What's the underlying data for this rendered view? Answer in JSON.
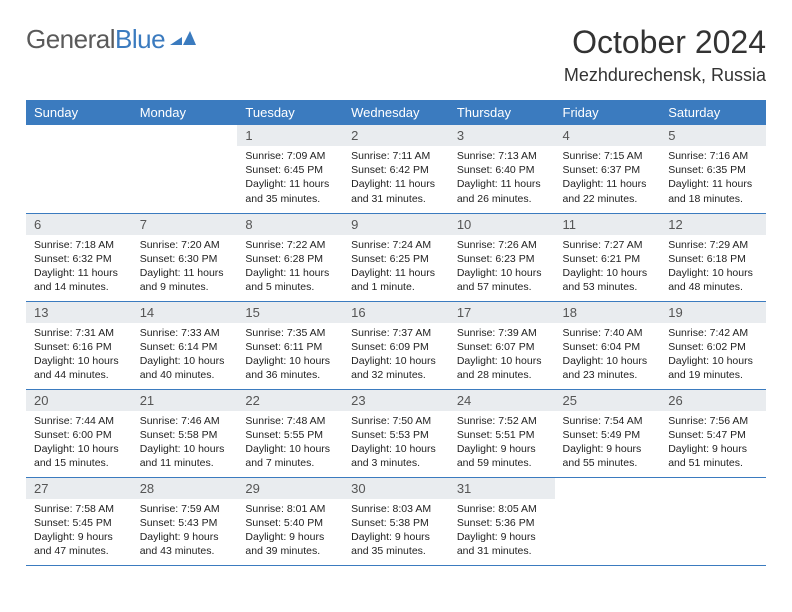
{
  "brand": {
    "text1": "General",
    "text2": "Blue"
  },
  "header": {
    "title": "October 2024",
    "location": "Mezhdurechensk, Russia"
  },
  "colors": {
    "accent": "#3b7bbf",
    "daynum_bg": "#e9ecef",
    "text": "#222222",
    "brand_gray": "#5a5a5a"
  },
  "weekdays": [
    "Sunday",
    "Monday",
    "Tuesday",
    "Wednesday",
    "Thursday",
    "Friday",
    "Saturday"
  ],
  "weeks": [
    [
      null,
      null,
      {
        "n": "1",
        "sr": "Sunrise: 7:09 AM",
        "ss": "Sunset: 6:45 PM",
        "dl": "Daylight: 11 hours and 35 minutes."
      },
      {
        "n": "2",
        "sr": "Sunrise: 7:11 AM",
        "ss": "Sunset: 6:42 PM",
        "dl": "Daylight: 11 hours and 31 minutes."
      },
      {
        "n": "3",
        "sr": "Sunrise: 7:13 AM",
        "ss": "Sunset: 6:40 PM",
        "dl": "Daylight: 11 hours and 26 minutes."
      },
      {
        "n": "4",
        "sr": "Sunrise: 7:15 AM",
        "ss": "Sunset: 6:37 PM",
        "dl": "Daylight: 11 hours and 22 minutes."
      },
      {
        "n": "5",
        "sr": "Sunrise: 7:16 AM",
        "ss": "Sunset: 6:35 PM",
        "dl": "Daylight: 11 hours and 18 minutes."
      }
    ],
    [
      {
        "n": "6",
        "sr": "Sunrise: 7:18 AM",
        "ss": "Sunset: 6:32 PM",
        "dl": "Daylight: 11 hours and 14 minutes."
      },
      {
        "n": "7",
        "sr": "Sunrise: 7:20 AM",
        "ss": "Sunset: 6:30 PM",
        "dl": "Daylight: 11 hours and 9 minutes."
      },
      {
        "n": "8",
        "sr": "Sunrise: 7:22 AM",
        "ss": "Sunset: 6:28 PM",
        "dl": "Daylight: 11 hours and 5 minutes."
      },
      {
        "n": "9",
        "sr": "Sunrise: 7:24 AM",
        "ss": "Sunset: 6:25 PM",
        "dl": "Daylight: 11 hours and 1 minute."
      },
      {
        "n": "10",
        "sr": "Sunrise: 7:26 AM",
        "ss": "Sunset: 6:23 PM",
        "dl": "Daylight: 10 hours and 57 minutes."
      },
      {
        "n": "11",
        "sr": "Sunrise: 7:27 AM",
        "ss": "Sunset: 6:21 PM",
        "dl": "Daylight: 10 hours and 53 minutes."
      },
      {
        "n": "12",
        "sr": "Sunrise: 7:29 AM",
        "ss": "Sunset: 6:18 PM",
        "dl": "Daylight: 10 hours and 48 minutes."
      }
    ],
    [
      {
        "n": "13",
        "sr": "Sunrise: 7:31 AM",
        "ss": "Sunset: 6:16 PM",
        "dl": "Daylight: 10 hours and 44 minutes."
      },
      {
        "n": "14",
        "sr": "Sunrise: 7:33 AM",
        "ss": "Sunset: 6:14 PM",
        "dl": "Daylight: 10 hours and 40 minutes."
      },
      {
        "n": "15",
        "sr": "Sunrise: 7:35 AM",
        "ss": "Sunset: 6:11 PM",
        "dl": "Daylight: 10 hours and 36 minutes."
      },
      {
        "n": "16",
        "sr": "Sunrise: 7:37 AM",
        "ss": "Sunset: 6:09 PM",
        "dl": "Daylight: 10 hours and 32 minutes."
      },
      {
        "n": "17",
        "sr": "Sunrise: 7:39 AM",
        "ss": "Sunset: 6:07 PM",
        "dl": "Daylight: 10 hours and 28 minutes."
      },
      {
        "n": "18",
        "sr": "Sunrise: 7:40 AM",
        "ss": "Sunset: 6:04 PM",
        "dl": "Daylight: 10 hours and 23 minutes."
      },
      {
        "n": "19",
        "sr": "Sunrise: 7:42 AM",
        "ss": "Sunset: 6:02 PM",
        "dl": "Daylight: 10 hours and 19 minutes."
      }
    ],
    [
      {
        "n": "20",
        "sr": "Sunrise: 7:44 AM",
        "ss": "Sunset: 6:00 PM",
        "dl": "Daylight: 10 hours and 15 minutes."
      },
      {
        "n": "21",
        "sr": "Sunrise: 7:46 AM",
        "ss": "Sunset: 5:58 PM",
        "dl": "Daylight: 10 hours and 11 minutes."
      },
      {
        "n": "22",
        "sr": "Sunrise: 7:48 AM",
        "ss": "Sunset: 5:55 PM",
        "dl": "Daylight: 10 hours and 7 minutes."
      },
      {
        "n": "23",
        "sr": "Sunrise: 7:50 AM",
        "ss": "Sunset: 5:53 PM",
        "dl": "Daylight: 10 hours and 3 minutes."
      },
      {
        "n": "24",
        "sr": "Sunrise: 7:52 AM",
        "ss": "Sunset: 5:51 PM",
        "dl": "Daylight: 9 hours and 59 minutes."
      },
      {
        "n": "25",
        "sr": "Sunrise: 7:54 AM",
        "ss": "Sunset: 5:49 PM",
        "dl": "Daylight: 9 hours and 55 minutes."
      },
      {
        "n": "26",
        "sr": "Sunrise: 7:56 AM",
        "ss": "Sunset: 5:47 PM",
        "dl": "Daylight: 9 hours and 51 minutes."
      }
    ],
    [
      {
        "n": "27",
        "sr": "Sunrise: 7:58 AM",
        "ss": "Sunset: 5:45 PM",
        "dl": "Daylight: 9 hours and 47 minutes."
      },
      {
        "n": "28",
        "sr": "Sunrise: 7:59 AM",
        "ss": "Sunset: 5:43 PM",
        "dl": "Daylight: 9 hours and 43 minutes."
      },
      {
        "n": "29",
        "sr": "Sunrise: 8:01 AM",
        "ss": "Sunset: 5:40 PM",
        "dl": "Daylight: 9 hours and 39 minutes."
      },
      {
        "n": "30",
        "sr": "Sunrise: 8:03 AM",
        "ss": "Sunset: 5:38 PM",
        "dl": "Daylight: 9 hours and 35 minutes."
      },
      {
        "n": "31",
        "sr": "Sunrise: 8:05 AM",
        "ss": "Sunset: 5:36 PM",
        "dl": "Daylight: 9 hours and 31 minutes."
      },
      null,
      null
    ]
  ]
}
